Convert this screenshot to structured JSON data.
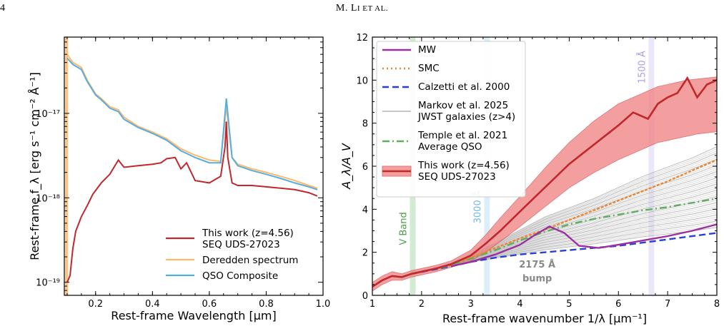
{
  "header": {
    "page_number": "4",
    "running_head": "M. Li et al."
  },
  "chart_data": [
    {
      "type": "line",
      "xlabel": "Rest-frame Wavelength [μm]",
      "ylabel": "Rest-frame f_λ [erg s⁻¹ cm⁻² Å⁻¹]",
      "xlim": [
        0.09,
        1.0
      ],
      "ylim": [
        7e-20,
        8e-17
      ],
      "yscale": "log",
      "xticks": [
        "0.2",
        "0.4",
        "0.6",
        "0.8",
        "1.0"
      ],
      "yticks": [
        "10⁻¹⁹",
        "10⁻¹⁸",
        "10⁻¹⁷"
      ],
      "legend_position": "lower-right",
      "series": [
        {
          "name": "This work (z=4.56)\nSEQ UDS-27023",
          "color": "#c0282d",
          "x": [
            0.1,
            0.11,
            0.12,
            0.13,
            0.15,
            0.17,
            0.19,
            0.22,
            0.25,
            0.28,
            0.3,
            0.35,
            0.4,
            0.43,
            0.45,
            0.48,
            0.5,
            0.52,
            0.55,
            0.6,
            0.64,
            0.655,
            0.66,
            0.665,
            0.68,
            0.7,
            0.75,
            0.8,
            0.85,
            0.9,
            0.95,
            0.98
          ],
          "y": [
            1e-19,
            1.2e-19,
            2.5e-19,
            4e-19,
            6e-19,
            8e-19,
            1.1e-18,
            1.5e-18,
            1.9e-18,
            2.8e-18,
            2.3e-18,
            2.4e-18,
            2.5e-18,
            2.6e-18,
            2.9e-18,
            3e-18,
            2.2e-18,
            2.6e-18,
            1.6e-18,
            1.5e-18,
            1.8e-18,
            4e-18,
            8e-18,
            3e-18,
            1.5e-18,
            1.4e-18,
            1.4e-18,
            1.35e-18,
            1.3e-18,
            1.25e-18,
            1.15e-18,
            1.05e-18
          ]
        },
        {
          "name": "Deredden spectrum",
          "color": "#ffb86b",
          "x": [
            0.1,
            0.12,
            0.15,
            0.17,
            0.2,
            0.22,
            0.25,
            0.28,
            0.3,
            0.35,
            0.4,
            0.45,
            0.5,
            0.55,
            0.6,
            0.64,
            0.66,
            0.68,
            0.7,
            0.75,
            0.8,
            0.85,
            0.9,
            0.95,
            0.98
          ],
          "y": [
            5e-17,
            4e-17,
            3.5e-17,
            2.5e-17,
            1.7e-17,
            1.5e-17,
            1.2e-17,
            1.1e-17,
            9e-18,
            7e-18,
            6e-18,
            5e-18,
            3.8e-18,
            3.2e-18,
            2.8e-18,
            2.7e-18,
            1.2e-17,
            3e-18,
            2.5e-18,
            2.2e-18,
            2e-18,
            1.8e-18,
            1.6e-18,
            1.4e-18,
            1.3e-18
          ]
        },
        {
          "name": "QSO Composite",
          "color": "#56aee0",
          "x": [
            0.1,
            0.12,
            0.15,
            0.17,
            0.2,
            0.22,
            0.25,
            0.28,
            0.3,
            0.35,
            0.4,
            0.45,
            0.5,
            0.55,
            0.6,
            0.64,
            0.66,
            0.68,
            0.7,
            0.75,
            0.8,
            0.85,
            0.9,
            0.95,
            0.98
          ],
          "y": [
            4.5e-17,
            3.8e-17,
            3.3e-17,
            2.4e-17,
            1.65e-17,
            1.45e-17,
            1.15e-17,
            1.05e-17,
            8.5e-18,
            6.8e-18,
            5.8e-18,
            4.8e-18,
            3.6e-18,
            3e-18,
            2.6e-18,
            2.6e-18,
            1.5e-17,
            3e-18,
            2.4e-18,
            2.1e-18,
            1.9e-18,
            1.7e-18,
            1.5e-18,
            1.35e-18,
            1.25e-18
          ]
        }
      ]
    },
    {
      "type": "line",
      "xlabel": "Rest-frame wavenumber 1/λ [μm⁻¹]",
      "ylabel": "A_λ/A_V",
      "xlim": [
        1,
        8
      ],
      "ylim": [
        0,
        12
      ],
      "xticks": [
        "1",
        "2",
        "3",
        "4",
        "5",
        "6",
        "7",
        "8"
      ],
      "yticks": [
        "0",
        "2",
        "4",
        "6",
        "8",
        "10",
        "12"
      ],
      "legend_position": "upper-left",
      "bands": [
        {
          "label": "V Band",
          "x": 1.82,
          "color": "#7cc27c"
        },
        {
          "label": "3000 Å",
          "x": 3.33,
          "color": "#9ccff0"
        },
        {
          "label": "1500 Å",
          "x": 6.67,
          "color": "#c9b6ee"
        }
      ],
      "annotation": "2175 Å\nbump",
      "series": [
        {
          "name": "MW",
          "color": "#9b2fa0",
          "style": "solid",
          "x": [
            2.6,
            3.0,
            3.5,
            4.0,
            4.3,
            4.6,
            4.9,
            5.2,
            5.6,
            6.0,
            6.5,
            7.0,
            7.5,
            8.0
          ],
          "y": [
            1.35,
            1.55,
            1.9,
            2.35,
            2.8,
            3.2,
            2.9,
            2.3,
            2.2,
            2.35,
            2.55,
            2.75,
            3.0,
            3.3
          ]
        },
        {
          "name": "SMC",
          "color": "#f0852d",
          "style": "dotted",
          "x": [
            1.8,
            2.6,
            3.0,
            3.5,
            4.0,
            4.5,
            5.0,
            5.5,
            6.0,
            6.5,
            7.0,
            7.5,
            8.0
          ],
          "y": [
            1.0,
            1.4,
            1.75,
            2.2,
            2.65,
            3.05,
            3.5,
            3.95,
            4.4,
            4.85,
            5.3,
            5.8,
            6.3
          ]
        },
        {
          "name": "Calzetti et al. 2000",
          "color": "#2a3fd6",
          "style": "dashed",
          "x": [
            1.8,
            2.6,
            3.0,
            3.5,
            4.0,
            4.5,
            5.0,
            5.5,
            6.0,
            6.5,
            7.0,
            7.5,
            8.0
          ],
          "y": [
            1.0,
            1.35,
            1.55,
            1.75,
            1.9,
            2.0,
            2.1,
            2.2,
            2.3,
            2.45,
            2.6,
            2.75,
            2.9
          ]
        },
        {
          "name": "Temple et al. 2021\nAverage QSO",
          "color": "#5fae5f",
          "style": "dashdot",
          "x": [
            1.8,
            2.6,
            3.0,
            3.5,
            4.0,
            4.5,
            5.0,
            5.5,
            6.0,
            6.5,
            7.0,
            7.5,
            8.0
          ],
          "y": [
            1.0,
            1.4,
            1.7,
            2.1,
            2.55,
            2.95,
            3.3,
            3.55,
            3.75,
            3.95,
            4.1,
            4.3,
            4.5
          ]
        },
        {
          "name": "This work (z=4.56)\nSEQ UDS-27023",
          "color": "#c0282d",
          "style": "solid",
          "x": [
            1.0,
            1.2,
            1.4,
            1.6,
            1.8,
            2.0,
            2.3,
            2.6,
            3.0,
            3.3,
            3.6,
            4.0,
            4.5,
            5.0,
            5.5,
            6.0,
            6.3,
            6.6,
            6.8,
            7.0,
            7.2,
            7.4,
            7.6,
            7.8,
            8.0
          ],
          "y": [
            0.4,
            0.7,
            0.9,
            0.85,
            1.0,
            1.1,
            1.25,
            1.45,
            1.85,
            2.4,
            3.0,
            3.9,
            5.0,
            6.1,
            7.0,
            7.9,
            8.5,
            8.2,
            8.9,
            9.2,
            9.4,
            10.1,
            9.2,
            9.8,
            10.0
          ],
          "band_low": [
            0.2,
            0.5,
            0.7,
            0.7,
            0.85,
            0.95,
            1.1,
            1.3,
            1.6,
            2.0,
            2.5,
            3.2,
            4.1,
            5.0,
            5.7,
            6.3,
            6.6,
            6.9,
            7.1,
            7.2,
            7.3,
            7.4,
            7.5,
            7.55,
            7.6
          ],
          "band_high": [
            0.6,
            0.9,
            1.1,
            1.0,
            1.15,
            1.25,
            1.4,
            1.6,
            2.1,
            2.8,
            3.6,
            4.6,
            5.9,
            7.1,
            8.1,
            8.9,
            9.2,
            9.5,
            9.7,
            9.8,
            9.9,
            10.0,
            10.05,
            10.1,
            10.15
          ]
        },
        {
          "name": "Markov et al. 2025\nJWST galaxies (z>4)",
          "color": "#c8c8c8",
          "style": "solid",
          "x": [
            2.6,
            3.5,
            4.5,
            5.5,
            6.5,
            7.5,
            8.0
          ],
          "y": [
            1.4,
            2.0,
            2.7,
            3.2,
            3.8,
            4.3,
            4.6
          ]
        }
      ]
    }
  ]
}
